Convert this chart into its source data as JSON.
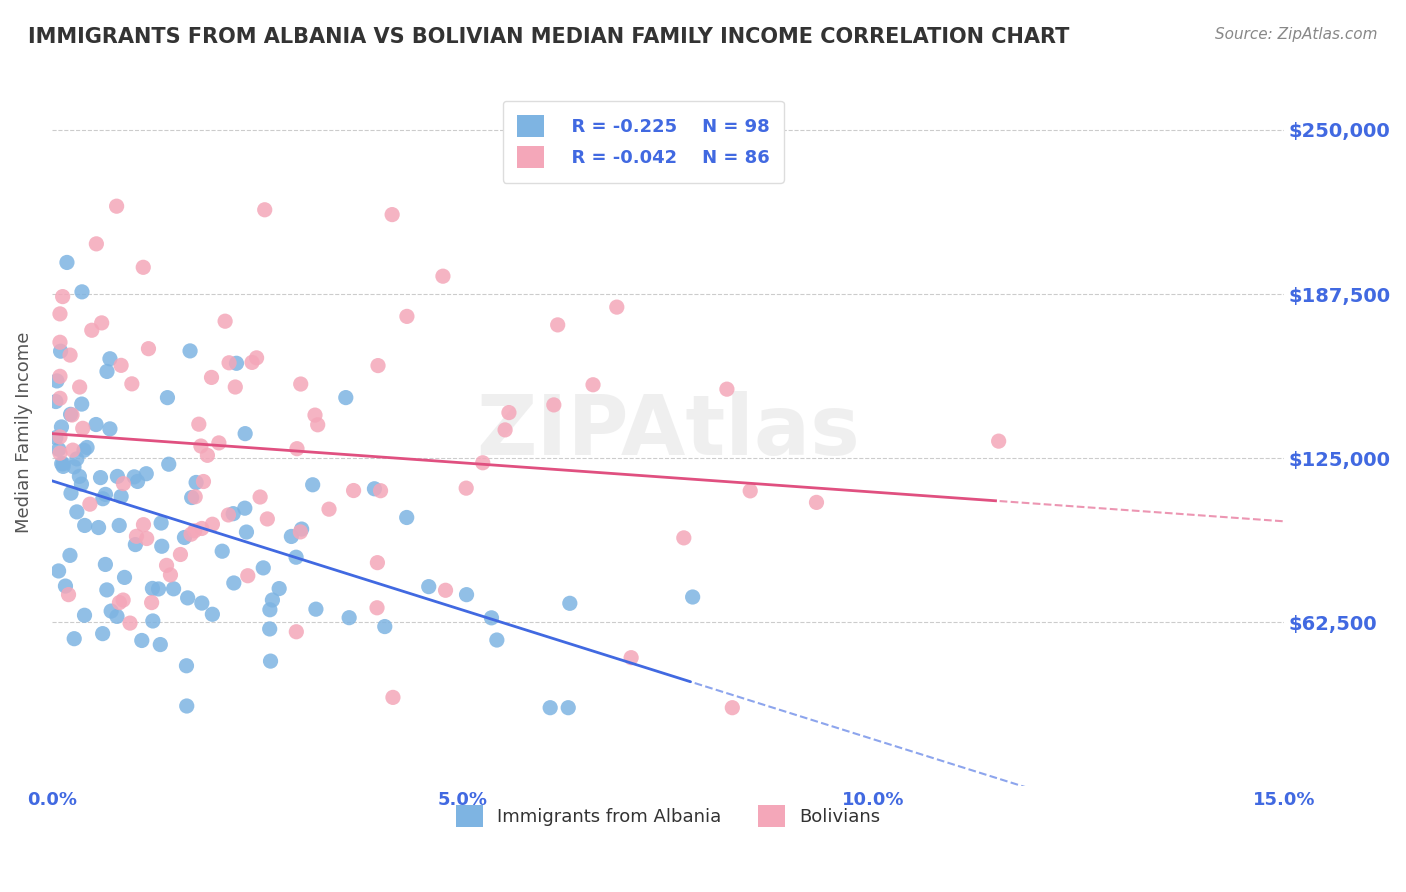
{
  "title": "IMMIGRANTS FROM ALBANIA VS BOLIVIAN MEDIAN FAMILY INCOME CORRELATION CHART",
  "source_text": "Source: ZipAtlas.com",
  "xlabel": "",
  "ylabel": "Median Family Income",
  "xlim": [
    0.0,
    0.15
  ],
  "ylim": [
    0,
    270000
  ],
  "yticks": [
    62500,
    125000,
    187500,
    250000
  ],
  "ytick_labels": [
    "$62,500",
    "$125,000",
    "$187,500",
    "$250,000"
  ],
  "xticks": [
    0.0,
    0.05,
    0.1,
    0.15
  ],
  "xtick_labels": [
    "0.0%",
    "5.0%",
    "10.0%",
    "15.0%"
  ],
  "blue_color": "#7EB4E2",
  "pink_color": "#F4A7B9",
  "blue_line_color": "#4169E1",
  "pink_line_color": "#E05080",
  "grid_color": "#CCCCCC",
  "background_color": "#FFFFFF",
  "tick_label_color": "#4169E1",
  "title_color": "#333333",
  "legend_r1": "R = -0.225",
  "legend_n1": "N = 98",
  "legend_r2": "R = -0.042",
  "legend_n2": "N = 86",
  "legend_label1": "Immigrants from Albania",
  "legend_label2": "Bolivians",
  "watermark": "ZIPAtlas",
  "blue_R": -0.225,
  "blue_N": 98,
  "pink_R": -0.042,
  "pink_N": 86,
  "blue_intercept": 115000,
  "blue_slope": -900000,
  "pink_intercept": 128000,
  "pink_slope": -150000
}
